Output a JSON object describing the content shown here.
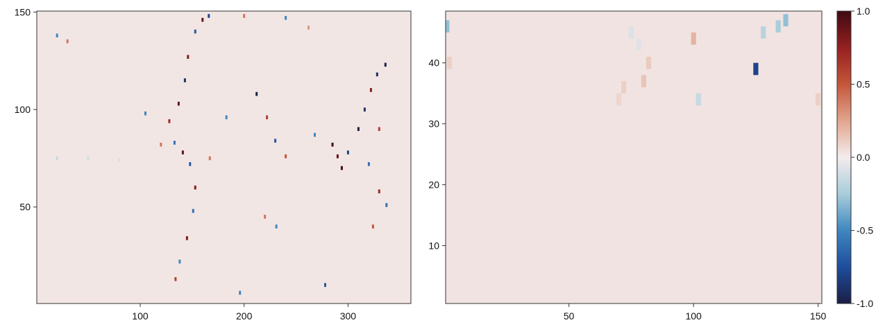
{
  "chart_data": [
    {
      "type": "heatmap",
      "x_ticks": [
        100,
        200,
        300
      ],
      "y_ticks": [
        50,
        100,
        150
      ],
      "x_tick_labels": [
        "100",
        "200",
        "300"
      ],
      "y_tick_labels": [
        "50",
        "100",
        "150"
      ],
      "xlim": [
        0.5,
        360.5
      ],
      "ylim": [
        0.5,
        150.5
      ],
      "colormap": "balance (diverging: navy - blue - white - red - dark red)",
      "value_range": [
        -1.0,
        1.0
      ],
      "background_value": 0.02,
      "features": [
        {
          "x": 137,
          "y": 103,
          "v": 0.9
        },
        {
          "x": 143,
          "y": 115,
          "v": -0.9
        },
        {
          "x": 146,
          "y": 127,
          "v": 0.8
        },
        {
          "x": 153,
          "y": 140,
          "v": -0.7
        },
        {
          "x": 160,
          "y": 146,
          "v": 0.9
        },
        {
          "x": 166,
          "y": 148,
          "v": -0.8
        },
        {
          "x": 128,
          "y": 94,
          "v": 0.7
        },
        {
          "x": 133,
          "y": 83,
          "v": -0.6
        },
        {
          "x": 141,
          "y": 78,
          "v": 0.9
        },
        {
          "x": 148,
          "y": 72,
          "v": -0.7
        },
        {
          "x": 153,
          "y": 60,
          "v": 0.8
        },
        {
          "x": 151,
          "y": 48,
          "v": -0.6
        },
        {
          "x": 145,
          "y": 34,
          "v": 0.8
        },
        {
          "x": 138,
          "y": 22,
          "v": -0.5
        },
        {
          "x": 134,
          "y": 13,
          "v": 0.6
        },
        {
          "x": 183,
          "y": 96,
          "v": -0.5
        },
        {
          "x": 212,
          "y": 108,
          "v": -1.0
        },
        {
          "x": 222,
          "y": 96,
          "v": 0.6
        },
        {
          "x": 230,
          "y": 84,
          "v": -0.7
        },
        {
          "x": 240,
          "y": 76,
          "v": 0.5
        },
        {
          "x": 268,
          "y": 87,
          "v": -0.5
        },
        {
          "x": 285,
          "y": 82,
          "v": 1.0
        },
        {
          "x": 290,
          "y": 76,
          "v": 0.9
        },
        {
          "x": 294,
          "y": 70,
          "v": 1.0
        },
        {
          "x": 300,
          "y": 78,
          "v": -0.8
        },
        {
          "x": 310,
          "y": 90,
          "v": -1.0
        },
        {
          "x": 316,
          "y": 100,
          "v": -0.9
        },
        {
          "x": 322,
          "y": 110,
          "v": 0.8
        },
        {
          "x": 328,
          "y": 118,
          "v": -0.9
        },
        {
          "x": 336,
          "y": 123,
          "v": -1.0
        },
        {
          "x": 330,
          "y": 90,
          "v": 0.6
        },
        {
          "x": 320,
          "y": 72,
          "v": -0.6
        },
        {
          "x": 330,
          "y": 58,
          "v": 0.7
        },
        {
          "x": 337,
          "y": 51,
          "v": -0.6
        },
        {
          "x": 324,
          "y": 40,
          "v": 0.5
        },
        {
          "x": 20,
          "y": 138,
          "v": -0.5
        },
        {
          "x": 30,
          "y": 135,
          "v": 0.4
        },
        {
          "x": 20,
          "y": 75,
          "v": -0.15
        },
        {
          "x": 50,
          "y": 75,
          "v": -0.12
        },
        {
          "x": 80,
          "y": 74,
          "v": -0.1
        },
        {
          "x": 240,
          "y": 147,
          "v": -0.5
        },
        {
          "x": 200,
          "y": 148,
          "v": 0.4
        },
        {
          "x": 262,
          "y": 142,
          "v": 0.3
        },
        {
          "x": 196,
          "y": 6,
          "v": -0.5
        },
        {
          "x": 278,
          "y": 10,
          "v": -0.7
        },
        {
          "x": 231,
          "y": 40,
          "v": -0.5
        },
        {
          "x": 220,
          "y": 45,
          "v": 0.4
        },
        {
          "x": 167,
          "y": 75,
          "v": 0.4
        },
        {
          "x": 105,
          "y": 98,
          "v": -0.5
        },
        {
          "x": 120,
          "y": 82,
          "v": 0.4
        }
      ]
    },
    {
      "type": "heatmap",
      "x_ticks": [
        50,
        100,
        150
      ],
      "y_ticks": [
        10,
        20,
        30,
        40
      ],
      "x_tick_labels": [
        "50",
        "100",
        "150"
      ],
      "y_tick_labels": [
        "10",
        "20",
        "30",
        "40"
      ],
      "xlim": [
        0.5,
        151.5
      ],
      "ylim": [
        0.5,
        48.5
      ],
      "colormap": "balance (diverging: navy - blue - white - red - dark red)",
      "value_range": [
        -1.0,
        1.0
      ],
      "background_value": 0.03,
      "features": [
        {
          "x": 70,
          "y": 34,
          "v": 0.08
        },
        {
          "x": 72,
          "y": 36,
          "v": 0.1
        },
        {
          "x": 80,
          "y": 37,
          "v": 0.14
        },
        {
          "x": 82,
          "y": 40,
          "v": 0.12
        },
        {
          "x": 75,
          "y": 45,
          "v": -0.08
        },
        {
          "x": 78,
          "y": 43,
          "v": -0.07
        },
        {
          "x": 100,
          "y": 44,
          "v": 0.2
        },
        {
          "x": 102,
          "y": 34,
          "v": -0.15
        },
        {
          "x": 128,
          "y": 45,
          "v": -0.2
        },
        {
          "x": 134,
          "y": 46,
          "v": -0.25
        },
        {
          "x": 137,
          "y": 47,
          "v": -0.3
        },
        {
          "x": 125,
          "y": 39,
          "v": -0.8
        },
        {
          "x": 150,
          "y": 34,
          "v": 0.1
        },
        {
          "x": 1,
          "y": 46,
          "v": -0.3
        },
        {
          "x": 2,
          "y": 40,
          "v": 0.1
        }
      ]
    }
  ],
  "colorbar": {
    "min": -1.0,
    "max": 1.0,
    "ticks": [
      -1.0,
      -0.5,
      0.0,
      0.5,
      1.0
    ],
    "tick_labels": [
      "-1.0",
      "-0.5",
      "0.0",
      "0.5",
      "1.0"
    ],
    "colors": [
      "#1b1e46",
      "#1f4d9c",
      "#3f87bf",
      "#a9cddb",
      "#f3ecec",
      "#e2a58e",
      "#c4563a",
      "#952020",
      "#3f0a12"
    ]
  }
}
